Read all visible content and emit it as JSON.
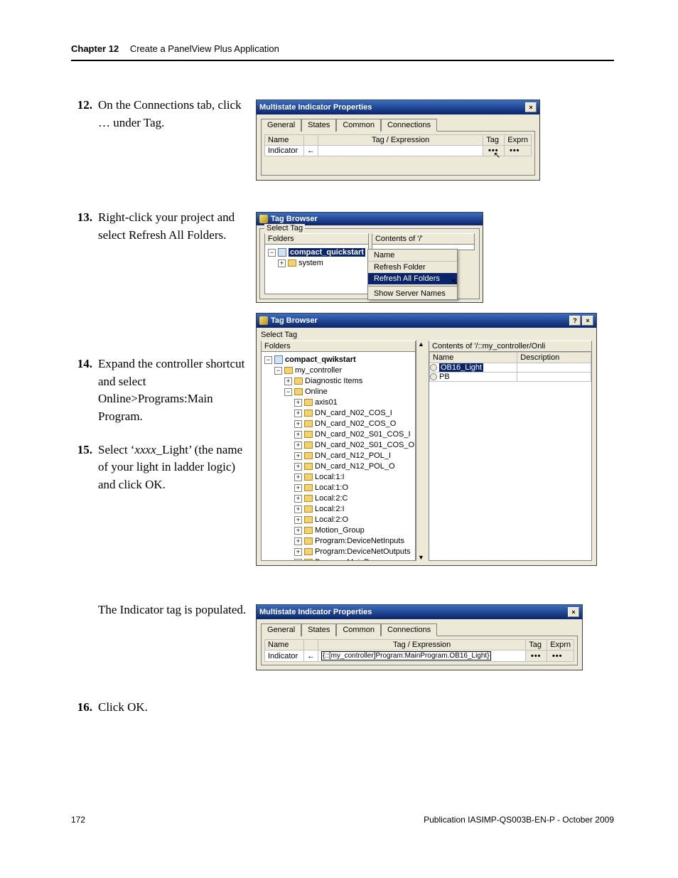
{
  "header": {
    "chapter_label": "Chapter  12",
    "chapter_title": "Create a PanelView Plus Application"
  },
  "steps": [
    {
      "num": "12.",
      "text": "On the Connections tab, click … under Tag."
    },
    {
      "num": "13.",
      "text": "Right-click your project and select Refresh All Folders."
    },
    {
      "num": "14.",
      "text": "Expand the controller shortcut and select Online>Programs:Main Program."
    },
    {
      "num": "15.",
      "text": "Select ‘xxxx_Light’ (the name of your light in ladder logic) and click OK."
    },
    {
      "num": "16.",
      "text": "Click OK."
    }
  ],
  "note": "The Indicator tag is populated.",
  "dialog1": {
    "title": "Multistate Indicator Properties",
    "tabs": [
      "General",
      "States",
      "Common",
      "Connections"
    ],
    "active_tab": 3,
    "cols": {
      "name": "Name",
      "tagexpr": "Tag / Expression",
      "tag": "Tag",
      "exprn": "Exprn"
    },
    "row_name": "Indicator",
    "arrow": "←",
    "tag_btn": "•••",
    "exprn_btn": "•••"
  },
  "tagbrowser1": {
    "title": "Tag Browser",
    "select_tag": "Select Tag",
    "folders_label": "Folders",
    "contents_label": "Contents of '/'",
    "root": "compact_quickstart",
    "child": "system",
    "ctx": {
      "name_hdr": "Name",
      "items": [
        "Refresh Folder",
        "Refresh All Folders",
        "Show Server Names"
      ],
      "selected_index": 1
    }
  },
  "tagbrowser2": {
    "title": "Tag Browser",
    "select_tag": "Select Tag",
    "folders_label": "Folders",
    "contents_label": "Contents of '/::my_controller/Onli",
    "contents_cols": {
      "name": "Name",
      "desc": "Description"
    },
    "contents_rows": [
      {
        "label": "OB16_Light",
        "selected": true
      },
      {
        "label": "PB",
        "selected": false
      }
    ],
    "tree": [
      {
        "indent": 0,
        "exp": "-",
        "icon": "ctrl",
        "label": "compact_qwikstart",
        "bold": true
      },
      {
        "indent": 1,
        "exp": "-",
        "icon": "folder",
        "label": "my_controller"
      },
      {
        "indent": 2,
        "exp": "+",
        "icon": "folder",
        "label": "Diagnostic Items"
      },
      {
        "indent": 2,
        "exp": "-",
        "icon": "folder",
        "label": "Online"
      },
      {
        "indent": 3,
        "exp": "+",
        "icon": "folder",
        "label": "axis01"
      },
      {
        "indent": 3,
        "exp": "+",
        "icon": "folder",
        "label": "DN_card_N02_COS_I"
      },
      {
        "indent": 3,
        "exp": "+",
        "icon": "folder",
        "label": "DN_card_N02_COS_O"
      },
      {
        "indent": 3,
        "exp": "+",
        "icon": "folder",
        "label": "DN_card_N02_S01_COS_I"
      },
      {
        "indent": 3,
        "exp": "+",
        "icon": "folder",
        "label": "DN_card_N02_S01_COS_O"
      },
      {
        "indent": 3,
        "exp": "+",
        "icon": "folder",
        "label": "DN_card_N12_POL_I"
      },
      {
        "indent": 3,
        "exp": "+",
        "icon": "folder",
        "label": "DN_card_N12_POL_O"
      },
      {
        "indent": 3,
        "exp": "+",
        "icon": "folder",
        "label": "Local:1:I"
      },
      {
        "indent": 3,
        "exp": "+",
        "icon": "folder",
        "label": "Local:1:O"
      },
      {
        "indent": 3,
        "exp": "+",
        "icon": "folder",
        "label": "Local:2:C"
      },
      {
        "indent": 3,
        "exp": "+",
        "icon": "folder",
        "label": "Local:2:I"
      },
      {
        "indent": 3,
        "exp": "+",
        "icon": "folder",
        "label": "Local:2:O"
      },
      {
        "indent": 3,
        "exp": "+",
        "icon": "folder",
        "label": "Motion_Group"
      },
      {
        "indent": 3,
        "exp": "+",
        "icon": "folder",
        "label": "Program:DeviceNetInputs"
      },
      {
        "indent": 3,
        "exp": "+",
        "icon": "folder",
        "label": "Program:DeviceNetOutputs"
      },
      {
        "indent": 3,
        "exp": "-",
        "icon": "folder",
        "label": "Program:MainProgram",
        "open": true
      }
    ]
  },
  "dialog2": {
    "title": "Multistate Indicator Properties",
    "tabs": [
      "General",
      "States",
      "Common",
      "Connections"
    ],
    "active_tab": 3,
    "cols": {
      "name": "Name",
      "tagexpr": "Tag / Expression",
      "tag": "Tag",
      "exprn": "Exprn"
    },
    "row_name": "Indicator",
    "arrow": "←",
    "tag_value": "{::[my_controller]Program:MainProgram.OB16_Light}",
    "tag_btn": "•••",
    "exprn_btn": "•••"
  },
  "footer": {
    "page": "172",
    "pub": "Publication IASIMP-QS003B-EN-P - October 2009"
  },
  "colors": {
    "titlebar_start": "#3b6ec2",
    "titlebar_end": "#0a246a",
    "panel_bg": "#ece9d8",
    "selection": "#0a246a"
  }
}
